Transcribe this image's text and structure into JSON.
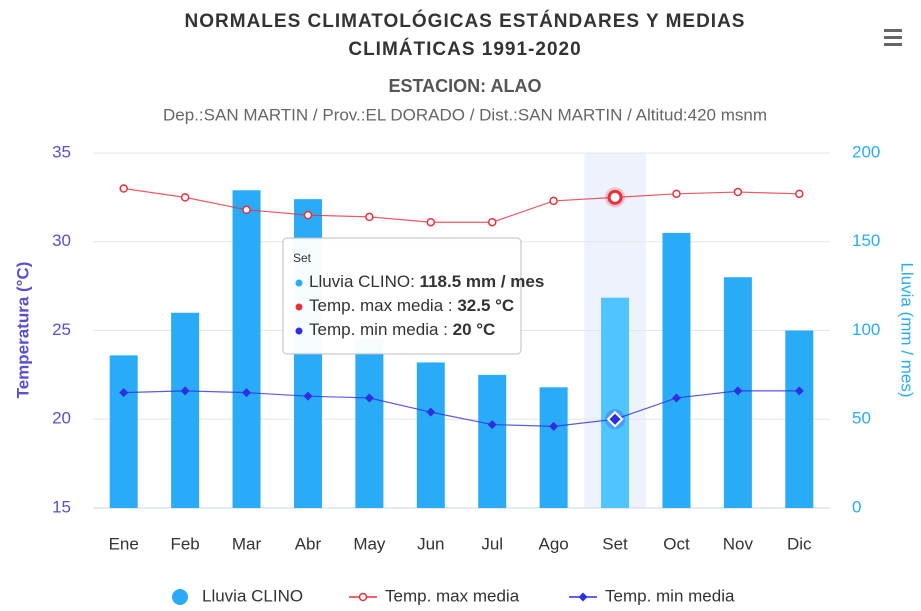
{
  "chart_data": {
    "type": "bar",
    "title": [
      "NORMALES CLIMATOLÓGICAS ESTÁNDARES Y MEDIAS",
      "CLIMÁTICAS 1991-2020"
    ],
    "subtitle": "ESTACION: ALAO",
    "caption": "Dep.:SAN MARTIN / Prov.:EL DORADO / Dist.:SAN MARTIN / Altitud:420 msnm",
    "ylabel": "Temperatura (°C)",
    "y2label": "Lluvia (mm / mes)",
    "categories": [
      "Ene",
      "Feb",
      "Mar",
      "Abr",
      "May",
      "Jun",
      "Jul",
      "Ago",
      "Set",
      "Oct",
      "Nov",
      "Dic"
    ],
    "series": [
      {
        "name": "Lluvia CLINO",
        "type": "bar",
        "axis": "y2",
        "color": "#29abf8",
        "values": [
          86,
          110,
          179,
          174,
          95,
          82,
          75,
          68,
          118.5,
          155,
          130,
          100
        ]
      },
      {
        "name": "Temp. max media",
        "type": "line",
        "marker": "circle",
        "color": "#e8303a",
        "values": [
          33.0,
          32.5,
          31.8,
          31.5,
          31.4,
          31.1,
          31.1,
          32.3,
          32.5,
          32.7,
          32.8,
          32.7
        ]
      },
      {
        "name": "Temp. min media",
        "type": "line",
        "marker": "diamond",
        "color": "#2f2fe0",
        "values": [
          21.5,
          21.6,
          21.5,
          21.3,
          21.2,
          20.4,
          19.7,
          19.6,
          20,
          21.2,
          21.6,
          21.6
        ]
      }
    ],
    "ylim": [
      15,
      35
    ],
    "yticks": [
      15,
      20,
      25,
      30,
      35
    ],
    "y2lim": [
      0,
      200
    ],
    "y2ticks": [
      0,
      50,
      100,
      150,
      200
    ],
    "grid": true,
    "highlight_index": 8,
    "tooltip": {
      "title": "Set",
      "items": [
        {
          "label": "Lluvia CLINO: ",
          "value": "118.5 mm / mes"
        },
        {
          "label": "Temp. max media : ",
          "value": "32.5 °C"
        },
        {
          "label": "Temp. min media : ",
          "value": "20 °C"
        }
      ]
    }
  }
}
